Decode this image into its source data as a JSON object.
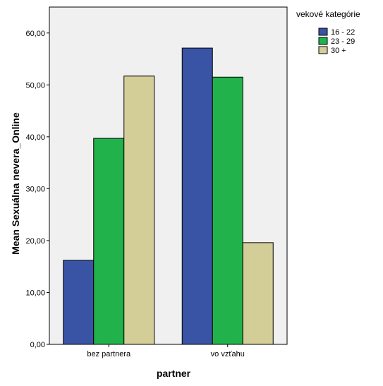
{
  "chart_data": {
    "type": "bar",
    "title": "",
    "xlabel": "partner",
    "ylabel": "Mean Sexuálna nevera_Online",
    "categories": [
      "bez partnera",
      "vo vzťahu"
    ],
    "series": [
      {
        "name": "16 - 22",
        "values": [
          16.2,
          57.1
        ],
        "color": "#3953a5"
      },
      {
        "name": "23 - 29",
        "values": [
          39.7,
          51.5
        ],
        "color": "#21b24b"
      },
      {
        "name": "30 +",
        "values": [
          51.7,
          19.6
        ],
        "color": "#d3ce97"
      }
    ],
    "ylim": [
      0,
      65
    ],
    "yticks": [
      0,
      10,
      20,
      30,
      40,
      50,
      60
    ],
    "ytick_labels": [
      "0,00",
      "10,00",
      "20,00",
      "30,00",
      "40,00",
      "50,00",
      "60,00"
    ],
    "legend": {
      "title": "vekové kategórie",
      "placement": "top-right"
    },
    "plot_background": "#f0f0f0",
    "grid": false
  }
}
